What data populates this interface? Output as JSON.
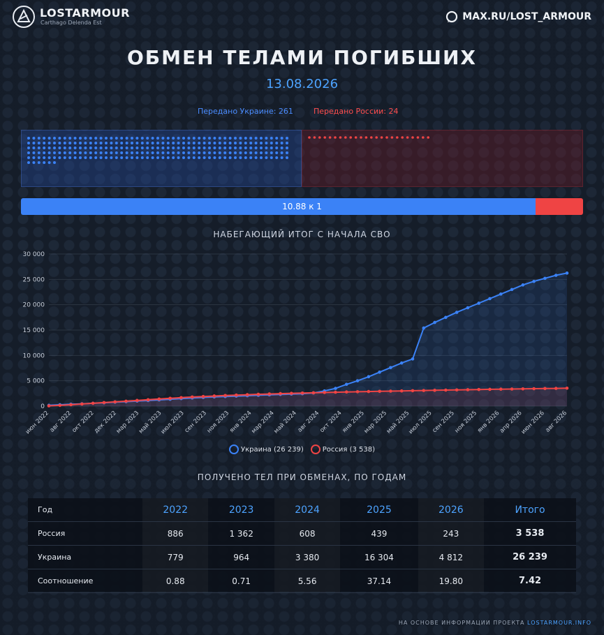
{
  "header": {
    "brand": "LOSTARMOUR",
    "tagline": "Carthago Delenda Est",
    "channel": "MAX.RU/LOST_ARMOUR"
  },
  "title": "ОБМЕН ТЕЛАМИ ПОГИБШИХ",
  "date": "13.08.2026",
  "transfer": {
    "ua_label": "Передано Украине: 261",
    "ru_label": "Передано России: 24",
    "ua_count": 261,
    "ru_count": 24,
    "ratio_label": "10.88 к 1",
    "ratio_fraction_ua": 0.9158
  },
  "colors": {
    "ukraine": "#3b82f6",
    "russia": "#ef4444"
  },
  "chart_data": {
    "type": "line",
    "title": "НАБЕГАЮЩИЙ ИТОГ С НАЧАЛА СВО",
    "ylim": [
      0,
      30000
    ],
    "yticks": [
      "0",
      "5 000",
      "10 000",
      "15 000",
      "20 000",
      "25 000",
      "30 000"
    ],
    "xtick_labels": [
      "июн 2022",
      "авг 2022",
      "окт 2022",
      "дек 2022",
      "мар 2023",
      "май 2023",
      "июл 2023",
      "сен 2023",
      "ноя 2023",
      "янв 2024",
      "мар 2024",
      "май 2024",
      "авг 2024",
      "окт 2024",
      "янв 2025",
      "мар 2025",
      "май 2025",
      "июл 2025",
      "сен 2025",
      "ноя 2025",
      "янв 2026",
      "апр 2026",
      "июн 2026",
      "авг 2026"
    ],
    "series": [
      {
        "name": "Украина (26 239)",
        "color": "#3b82f6",
        "values": [
          160,
          280,
          380,
          460,
          560,
          660,
          780,
          880,
          990,
          1100,
          1220,
          1350,
          1480,
          1600,
          1710,
          1800,
          1880,
          1960,
          2050,
          2140,
          2220,
          2300,
          2380,
          2450,
          2600,
          3000,
          3500,
          4300,
          5000,
          5800,
          6700,
          7600,
          8500,
          9300,
          15400,
          16500,
          17500,
          18500,
          19400,
          20300,
          21200,
          22100,
          23000,
          23900,
          24600,
          25200,
          25800,
          26239
        ]
      },
      {
        "name": "Россия (3 538)",
        "color": "#ef4444",
        "values": [
          50,
          150,
          280,
          420,
          560,
          700,
          840,
          980,
          1120,
          1260,
          1400,
          1540,
          1680,
          1800,
          1900,
          2000,
          2100,
          2180,
          2260,
          2340,
          2400,
          2470,
          2530,
          2580,
          2630,
          2690,
          2740,
          2790,
          2840,
          2880,
          2920,
          2960,
          3000,
          3040,
          3080,
          3120,
          3160,
          3200,
          3240,
          3280,
          3310,
          3340,
          3370,
          3400,
          3440,
          3470,
          3500,
          3538
        ]
      }
    ]
  },
  "table": {
    "title": "ПОЛУЧЕНО ТЕЛ ПРИ ОБМЕНАХ, ПО ГОДАМ",
    "headers": [
      "Год",
      "2022",
      "2023",
      "2024",
      "2025",
      "2026",
      "Итого"
    ],
    "rows": [
      [
        "Россия",
        "886",
        "1 362",
        "608",
        "439",
        "243",
        "3 538"
      ],
      [
        "Украина",
        "779",
        "964",
        "3 380",
        "16 304",
        "4 812",
        "26 239"
      ],
      [
        "Соотношение",
        "0.88",
        "0.71",
        "5.56",
        "37.14",
        "19.80",
        "7.42"
      ]
    ]
  },
  "footer": {
    "prefix": "НА ОСНОВЕ ИНФОРМАЦИИ ПРОЕКТА",
    "link": "LOSTARMOUR.INFO"
  }
}
